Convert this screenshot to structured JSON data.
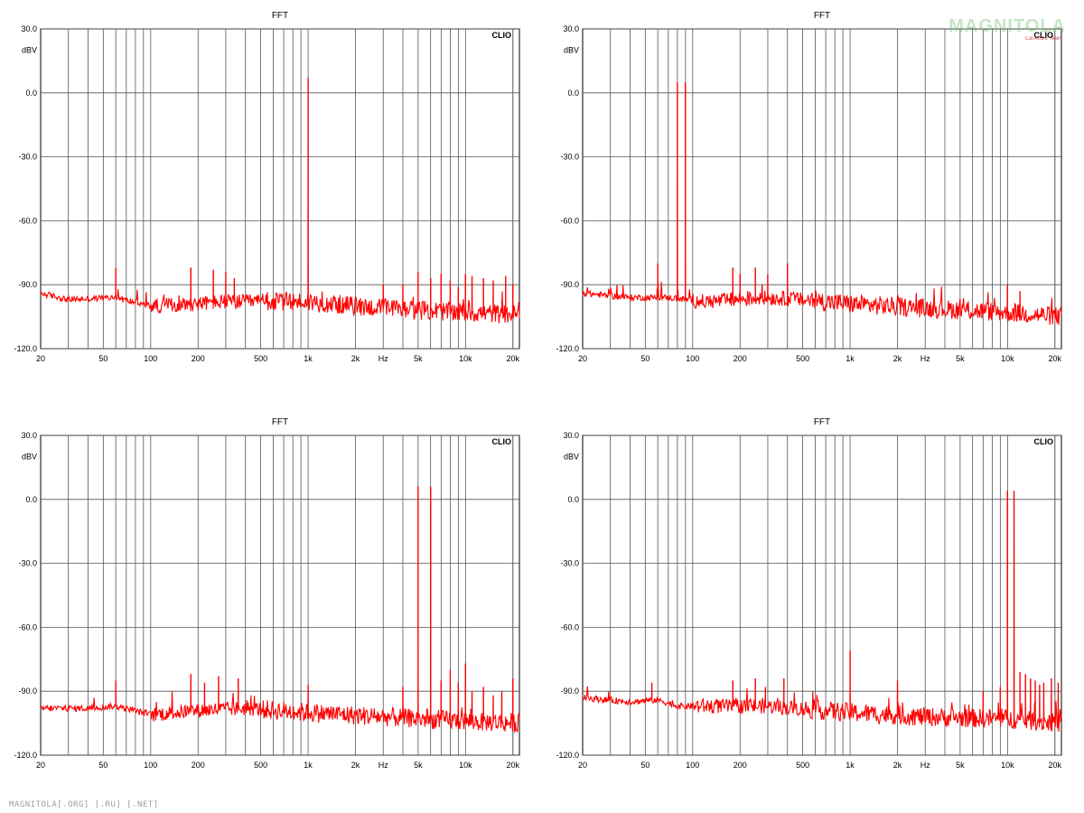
{
  "watermark": {
    "brand": "MAGNITOLA",
    "sub": "CarAudio Team"
  },
  "footer_text": "MAGNITOLA[.ORG] [.RU] [.NET]",
  "common": {
    "title": "FFT",
    "ylabel": "dBV",
    "xunit": "Hz",
    "badge": "CLIO",
    "ylim": [
      -120,
      30
    ],
    "xlim": [
      20,
      22000
    ],
    "x_scale": "log",
    "grid": true,
    "line_color": "#ff0000",
    "yticks": [
      30,
      0,
      -30,
      -60,
      -90,
      -120
    ],
    "ytick_labels": [
      "30.0",
      "0.0",
      "-30.0",
      "-60.0",
      "-90.0",
      "-120.0"
    ],
    "xtick_labels": [
      {
        "f": 20,
        "t": "20"
      },
      {
        "f": 50,
        "t": "50"
      },
      {
        "f": 100,
        "t": "100"
      },
      {
        "f": 200,
        "t": "200"
      },
      {
        "f": 500,
        "t": "500"
      },
      {
        "f": 1000,
        "t": "1k"
      },
      {
        "f": 2000,
        "t": "2k"
      },
      {
        "f": 3000,
        "t": "Hz"
      },
      {
        "f": 5000,
        "t": "5k"
      },
      {
        "f": 10000,
        "t": "10k"
      },
      {
        "f": 20000,
        "t": "20k"
      }
    ]
  },
  "chart_data": [
    {
      "type": "line",
      "title": "FFT",
      "ylabel": "dBV",
      "x_scale": "log",
      "ylim": [
        -120,
        30
      ],
      "floor": [
        [
          20,
          -94
        ],
        [
          30,
          -97
        ],
        [
          60,
          -96
        ],
        [
          100,
          -100
        ],
        [
          300,
          -98
        ],
        [
          1000,
          -98
        ],
        [
          3000,
          -101
        ],
        [
          10000,
          -103
        ],
        [
          22000,
          -104
        ]
      ],
      "peaks": [
        [
          60,
          -82
        ],
        [
          180,
          -82
        ],
        [
          250,
          -83
        ],
        [
          300,
          -84
        ],
        [
          340,
          -87
        ],
        [
          1000,
          7
        ],
        [
          3000,
          -90
        ],
        [
          4000,
          -90
        ],
        [
          5000,
          -84
        ],
        [
          6000,
          -87
        ],
        [
          7000,
          -85
        ],
        [
          8000,
          -88
        ],
        [
          9000,
          -91
        ],
        [
          10000,
          -85
        ],
        [
          11000,
          -86
        ],
        [
          13000,
          -87
        ],
        [
          15000,
          -88
        ],
        [
          18000,
          -86
        ],
        [
          20000,
          -90
        ]
      ]
    },
    {
      "type": "line",
      "title": "FFT",
      "ylabel": "dBV",
      "x_scale": "log",
      "ylim": [
        -120,
        30
      ],
      "floor": [
        [
          20,
          -94
        ],
        [
          40,
          -96
        ],
        [
          70,
          -96
        ],
        [
          120,
          -98
        ],
        [
          300,
          -96
        ],
        [
          500,
          -97
        ],
        [
          1000,
          -99
        ],
        [
          3000,
          -101
        ],
        [
          10000,
          -103
        ],
        [
          22000,
          -105
        ]
      ],
      "peaks": [
        [
          60,
          -80
        ],
        [
          80,
          5
        ],
        [
          90,
          5
        ],
        [
          180,
          -82
        ],
        [
          200,
          -85
        ],
        [
          250,
          -82
        ],
        [
          300,
          -85
        ],
        [
          400,
          -80
        ],
        [
          10000,
          -90
        ],
        [
          12000,
          -93
        ]
      ]
    },
    {
      "type": "line",
      "title": "FFT",
      "ylabel": "dBV",
      "x_scale": "log",
      "ylim": [
        -120,
        30
      ],
      "floor": [
        [
          20,
          -98
        ],
        [
          40,
          -98
        ],
        [
          60,
          -97
        ],
        [
          100,
          -101
        ],
        [
          200,
          -99
        ],
        [
          400,
          -98
        ],
        [
          1000,
          -100
        ],
        [
          3000,
          -102
        ],
        [
          10000,
          -104
        ],
        [
          22000,
          -105
        ]
      ],
      "peaks": [
        [
          60,
          -85
        ],
        [
          180,
          -82
        ],
        [
          220,
          -86
        ],
        [
          270,
          -83
        ],
        [
          360,
          -84
        ],
        [
          1000,
          -87
        ],
        [
          4000,
          -88
        ],
        [
          5000,
          6
        ],
        [
          6000,
          6
        ],
        [
          7000,
          -85
        ],
        [
          8000,
          -80
        ],
        [
          9000,
          -86
        ],
        [
          10000,
          -77
        ],
        [
          11000,
          -90
        ],
        [
          13000,
          -88
        ],
        [
          15000,
          -92
        ],
        [
          17000,
          -90
        ],
        [
          20000,
          -84
        ]
      ]
    },
    {
      "type": "line",
      "title": "FFT",
      "ylabel": "dBV",
      "x_scale": "log",
      "ylim": [
        -120,
        30
      ],
      "floor": [
        [
          20,
          -93
        ],
        [
          40,
          -95
        ],
        [
          60,
          -94
        ],
        [
          80,
          -97
        ],
        [
          120,
          -97
        ],
        [
          300,
          -97
        ],
        [
          1000,
          -100
        ],
        [
          3000,
          -102
        ],
        [
          10000,
          -103
        ],
        [
          22000,
          -105
        ]
      ],
      "peaks": [
        [
          55,
          -86
        ],
        [
          180,
          -85
        ],
        [
          250,
          -84
        ],
        [
          290,
          -88
        ],
        [
          380,
          -84
        ],
        [
          1000,
          -71
        ],
        [
          2000,
          -85
        ],
        [
          7000,
          -90
        ],
        [
          9000,
          -88
        ],
        [
          10000,
          4
        ],
        [
          11000,
          4
        ],
        [
          12000,
          -81
        ],
        [
          13000,
          -82
        ],
        [
          14000,
          -84
        ],
        [
          15000,
          -85
        ],
        [
          16000,
          -87
        ],
        [
          17000,
          -86
        ],
        [
          19000,
          -84
        ],
        [
          21000,
          -86
        ]
      ]
    }
  ]
}
